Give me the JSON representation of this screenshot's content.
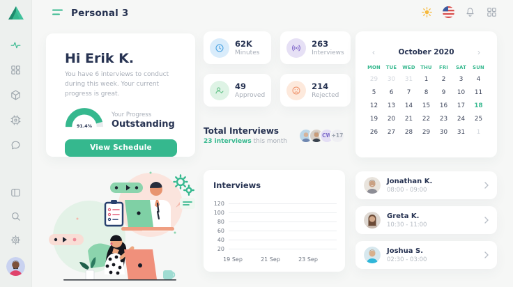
{
  "app": {
    "logo": "triangle-logo"
  },
  "header": {
    "title": "Personal 3",
    "icons": [
      "sun-icon",
      "us-flag-icon",
      "bell-icon",
      "apps-grid-icon"
    ]
  },
  "sidebar": {
    "items": [
      "activity",
      "dashboard-grid",
      "cube",
      "cpu",
      "chat",
      "panels",
      "search",
      "settings"
    ],
    "active_item": "activity"
  },
  "colors": {
    "accent_green": "#35b88e",
    "navy": "#273352",
    "gray": "#a8aeb8",
    "stat_blue": "#3f9de0",
    "stat_purple": "#7a5fc7",
    "stat_green": "#56bd7e",
    "stat_orange": "#ef9169"
  },
  "welcome": {
    "greeting": "Hi Erik K.",
    "message": "You have 6 interviews to conduct during this week. Your current progress is great.",
    "progress_label": "Your Progress",
    "progress_status": "Outstanding",
    "progress_value": "91.4%",
    "cta": "View Schedule"
  },
  "stats": [
    {
      "icon": "clock-icon",
      "value": "62K",
      "label": "Minutes"
    },
    {
      "icon": "broadcast-icon",
      "value": "263",
      "label": "Interviews"
    },
    {
      "icon": "user-check-icon",
      "value": "49",
      "label": "Approved"
    },
    {
      "icon": "sad-face-icon",
      "value": "214",
      "label": "Rejected"
    }
  ],
  "totals": {
    "title": "Total Interviews",
    "highlight": "23 interviews",
    "suffix": " this month",
    "avatars": [
      {
        "type": "photo",
        "name": "interviewer-1"
      },
      {
        "type": "photo",
        "name": "interviewer-2"
      },
      {
        "type": "initials",
        "label": "CW"
      },
      {
        "type": "more",
        "label": "+17"
      }
    ]
  },
  "calendar": {
    "prev": "‹",
    "next": "›",
    "month": "October 2020",
    "weekdays": [
      "MON",
      "TUE",
      "WED",
      "THU",
      "FRI",
      "SAT",
      "SUN"
    ],
    "days": [
      {
        "n": "29",
        "s": "muted"
      },
      {
        "n": "30",
        "s": "muted"
      },
      {
        "n": "31",
        "s": "muted"
      },
      {
        "n": "1"
      },
      {
        "n": "2"
      },
      {
        "n": "3"
      },
      {
        "n": "4"
      },
      {
        "n": "5"
      },
      {
        "n": "6"
      },
      {
        "n": "7"
      },
      {
        "n": "8"
      },
      {
        "n": "9"
      },
      {
        "n": "10"
      },
      {
        "n": "11"
      },
      {
        "n": "12"
      },
      {
        "n": "13"
      },
      {
        "n": "14"
      },
      {
        "n": "15"
      },
      {
        "n": "16"
      },
      {
        "n": "17"
      },
      {
        "n": "18",
        "s": "selected"
      },
      {
        "n": "19"
      },
      {
        "n": "20"
      },
      {
        "n": "21"
      },
      {
        "n": "22"
      },
      {
        "n": "23"
      },
      {
        "n": "24"
      },
      {
        "n": "25"
      },
      {
        "n": "26"
      },
      {
        "n": "27"
      },
      {
        "n": "28"
      },
      {
        "n": "29"
      },
      {
        "n": "30"
      },
      {
        "n": "31"
      },
      {
        "n": "1",
        "s": "muted"
      }
    ]
  },
  "chart_data": {
    "type": "line",
    "title": "Interviews",
    "yticks": [
      "120",
      "100",
      "80",
      "60",
      "40",
      "20"
    ],
    "ylim": [
      20,
      120
    ],
    "xticks": [
      "19 Sep",
      "21 Sep",
      "23 Sep"
    ],
    "series": [],
    "grid": "horizontal",
    "note": "axes and gridlines only; no data series plotted"
  },
  "appointments": [
    {
      "name": "Jonathan K.",
      "time": "08:00 - 09:00"
    },
    {
      "name": "Greta K.",
      "time": "10:30 - 11:00"
    },
    {
      "name": "Joshua S.",
      "time": "02:30 - 03:00"
    }
  ]
}
